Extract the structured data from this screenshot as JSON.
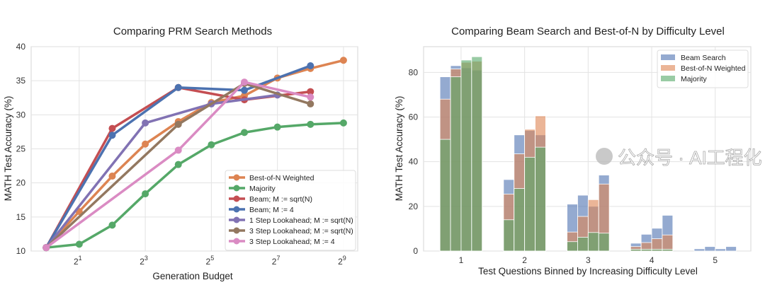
{
  "watermark": "公众号 · AI工程化",
  "chart_data": [
    {
      "type": "line",
      "title": "Comparing PRM Search Methods",
      "xlabel": "Generation Budget",
      "ylabel": "MATH Test Accuracy (%)",
      "x_scale": "log2",
      "x_ticks": [
        2,
        8,
        32,
        128,
        512
      ],
      "x_tick_labels": [
        [
          "2",
          "1"
        ],
        [
          "2",
          "3"
        ],
        [
          "2",
          "5"
        ],
        [
          "2",
          "7"
        ],
        [
          "2",
          "9"
        ]
      ],
      "y_ticks": [
        10,
        15,
        20,
        25,
        30,
        35,
        40
      ],
      "xlim": [
        0.73,
        690
      ],
      "ylim": [
        10,
        40
      ],
      "grid": true,
      "legend_placement": "lower-right",
      "series": [
        {
          "name": "Best-of-N Weighted",
          "color": "#dd8452",
          "x": [
            1,
            2,
            4,
            8,
            16,
            32,
            64,
            128,
            256,
            512
          ],
          "y": [
            10.5,
            15.8,
            21,
            25.7,
            29,
            31.8,
            32.8,
            35.4,
            36.8,
            38
          ]
        },
        {
          "name": "Majority",
          "color": "#55a868",
          "x": [
            1,
            2,
            4,
            8,
            16,
            32,
            64,
            128,
            256,
            512
          ],
          "y": [
            10.5,
            11,
            13.8,
            18.4,
            22.7,
            25.6,
            27.4,
            28.2,
            28.6,
            28.8
          ]
        },
        {
          "name": "Beam; M := sqrt(N)",
          "color": "#c44e52",
          "x": [
            1,
            4,
            16,
            64,
            256
          ],
          "y": [
            10.5,
            28,
            34,
            32.2,
            33.4
          ]
        },
        {
          "name": "Beam; M := 4",
          "color": "#4c72b0",
          "x": [
            1,
            4,
            16,
            64,
            256
          ],
          "y": [
            10.5,
            27,
            34,
            33.6,
            37.2
          ]
        },
        {
          "name": "1 Step Lookahead; M := sqrt(N)",
          "color": "#8172b3",
          "x": [
            1,
            8,
            32,
            128
          ],
          "y": [
            10.5,
            28.8,
            31.6,
            32.9
          ]
        },
        {
          "name": "3 Step Lookahead; M := sqrt(N)",
          "color": "#937860",
          "x": [
            1,
            16,
            64,
            256
          ],
          "y": [
            10.5,
            28.6,
            34.6,
            31.6
          ]
        },
        {
          "name": "3 Step Lookahead; M := 4",
          "color": "#da8bc3",
          "x": [
            1,
            16,
            64,
            256
          ],
          "y": [
            10.5,
            24.8,
            34.8,
            32.6
          ]
        }
      ]
    },
    {
      "type": "bar",
      "title": "Comparing Beam Search and Best-of-N by Difficulty Level",
      "xlabel": "Test Questions Binned by Increasing Difficulty Level",
      "ylabel": "MATH Test Accuracy (%)",
      "categories": [
        "1",
        "2",
        "3",
        "4",
        "5"
      ],
      "bars_per_category": 4,
      "y_ticks": [
        0,
        20,
        40,
        60,
        80
      ],
      "ylim": [
        0,
        91.5
      ],
      "grid": true,
      "legend_placement": "top-right",
      "overlay": true,
      "series": [
        {
          "name": "Beam Search",
          "color": "#4c72b0",
          "values": [
            [
              78,
              83,
              82,
              81
            ],
            [
              32,
              52,
              54,
              52
            ],
            [
              21,
              25,
              20,
              34
            ],
            [
              3.5,
              7.5,
              10.2,
              16
            ],
            [
              1,
              2,
              1,
              2
            ]
          ]
        },
        {
          "name": "Best-of-N Weighted",
          "color": "#dd8452",
          "values": [
            [
              68,
              81.5,
              84.5,
              85
            ],
            [
              25.5,
              43.5,
              54.5,
              60.5
            ],
            [
              8.5,
              15.5,
              23,
              30
            ],
            [
              2,
              3.8,
              5.5,
              7.2
            ],
            [
              0,
              0,
              0,
              0
            ]
          ]
        },
        {
          "name": "Majority",
          "color": "#55a868",
          "values": [
            [
              50,
              78,
              85.5,
              87
            ],
            [
              14,
              28,
              42,
              46.5
            ],
            [
              4.2,
              6.2,
              8.3,
              8
            ],
            [
              0.8,
              0.8,
              0.8,
              0.8
            ],
            [
              0,
              0,
              0,
              0
            ]
          ]
        }
      ]
    }
  ]
}
